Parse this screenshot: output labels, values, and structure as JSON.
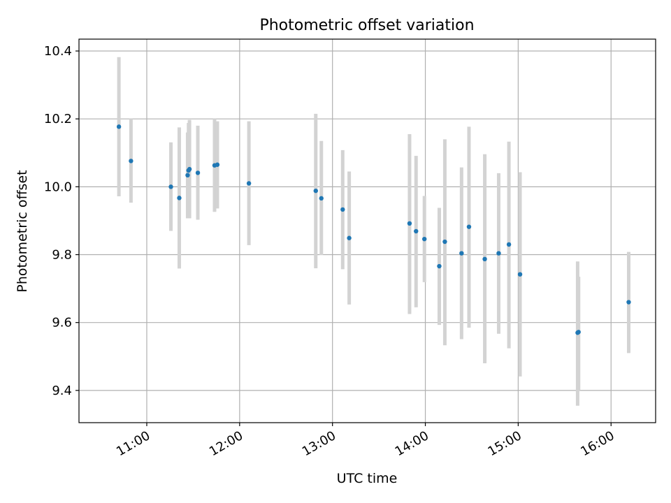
{
  "chart_data": {
    "type": "scatter",
    "title": "Photometric offset variation",
    "xlabel": "UTC time",
    "ylabel": "Photometric offset",
    "x_unit": "hours UTC",
    "xlim": [
      10.27,
      16.48
    ],
    "ylim": [
      9.305,
      10.435
    ],
    "xticks": [
      {
        "value": 11,
        "label": "11:00"
      },
      {
        "value": 12,
        "label": "12:00"
      },
      {
        "value": 13,
        "label": "13:00"
      },
      {
        "value": 14,
        "label": "14:00"
      },
      {
        "value": 15,
        "label": "15:00"
      },
      {
        "value": 16,
        "label": "16:00"
      }
    ],
    "yticks": [
      {
        "value": 9.4,
        "label": "9.4"
      },
      {
        "value": 9.6,
        "label": "9.6"
      },
      {
        "value": 9.8,
        "label": "9.8"
      },
      {
        "value": 10.0,
        "label": "10.0"
      },
      {
        "value": 10.2,
        "label": "10.2"
      },
      {
        "value": 10.4,
        "label": "10.4"
      }
    ],
    "grid": true,
    "legend": "none",
    "marker_color": "#1f77b4",
    "errorbar_color": "#d3d3d3",
    "points": [
      {
        "x": 10.7,
        "y": 10.177,
        "ylow": 9.972,
        "yhigh": 10.382
      },
      {
        "x": 10.83,
        "y": 10.076,
        "ylow": 9.953,
        "yhigh": 10.2
      },
      {
        "x": 11.26,
        "y": 10.0,
        "ylow": 9.87,
        "yhigh": 10.131
      },
      {
        "x": 11.35,
        "y": 9.967,
        "ylow": 9.759,
        "yhigh": 10.175
      },
      {
        "x": 11.44,
        "y": 10.034,
        "ylow": 9.907,
        "yhigh": 10.16
      },
      {
        "x": 11.45,
        "y": 10.048,
        "ylow": 9.912,
        "yhigh": 10.188
      },
      {
        "x": 11.46,
        "y": 10.052,
        "ylow": 9.907,
        "yhigh": 10.197
      },
      {
        "x": 11.55,
        "y": 10.041,
        "ylow": 9.903,
        "yhigh": 10.18
      },
      {
        "x": 11.73,
        "y": 10.063,
        "ylow": 9.926,
        "yhigh": 10.2
      },
      {
        "x": 11.76,
        "y": 10.065,
        "ylow": 9.936,
        "yhigh": 10.193
      },
      {
        "x": 12.1,
        "y": 10.01,
        "ylow": 9.828,
        "yhigh": 10.193
      },
      {
        "x": 12.82,
        "y": 9.988,
        "ylow": 9.76,
        "yhigh": 10.215
      },
      {
        "x": 12.88,
        "y": 9.966,
        "ylow": 9.799,
        "yhigh": 10.135
      },
      {
        "x": 13.11,
        "y": 9.933,
        "ylow": 9.757,
        "yhigh": 10.108
      },
      {
        "x": 13.18,
        "y": 9.849,
        "ylow": 9.653,
        "yhigh": 10.045
      },
      {
        "x": 13.83,
        "y": 9.892,
        "ylow": 9.625,
        "yhigh": 10.155
      },
      {
        "x": 13.9,
        "y": 9.869,
        "ylow": 9.645,
        "yhigh": 10.091
      },
      {
        "x": 13.99,
        "y": 9.846,
        "ylow": 9.719,
        "yhigh": 9.973
      },
      {
        "x": 14.15,
        "y": 9.766,
        "ylow": 9.593,
        "yhigh": 9.938
      },
      {
        "x": 14.21,
        "y": 9.838,
        "ylow": 9.533,
        "yhigh": 10.14
      },
      {
        "x": 14.39,
        "y": 9.804,
        "ylow": 9.551,
        "yhigh": 10.057
      },
      {
        "x": 14.47,
        "y": 9.882,
        "ylow": 9.585,
        "yhigh": 10.177
      },
      {
        "x": 14.64,
        "y": 9.787,
        "ylow": 9.48,
        "yhigh": 10.096
      },
      {
        "x": 14.79,
        "y": 9.804,
        "ylow": 9.567,
        "yhigh": 10.04
      },
      {
        "x": 14.9,
        "y": 9.83,
        "ylow": 9.524,
        "yhigh": 10.133
      },
      {
        "x": 15.02,
        "y": 9.742,
        "ylow": 9.441,
        "yhigh": 10.043
      },
      {
        "x": 15.64,
        "y": 9.57,
        "ylow": 9.355,
        "yhigh": 9.78
      },
      {
        "x": 15.65,
        "y": 9.572,
        "ylow": 9.4,
        "yhigh": 9.735
      },
      {
        "x": 16.19,
        "y": 9.66,
        "ylow": 9.51,
        "yhigh": 9.808
      }
    ]
  }
}
